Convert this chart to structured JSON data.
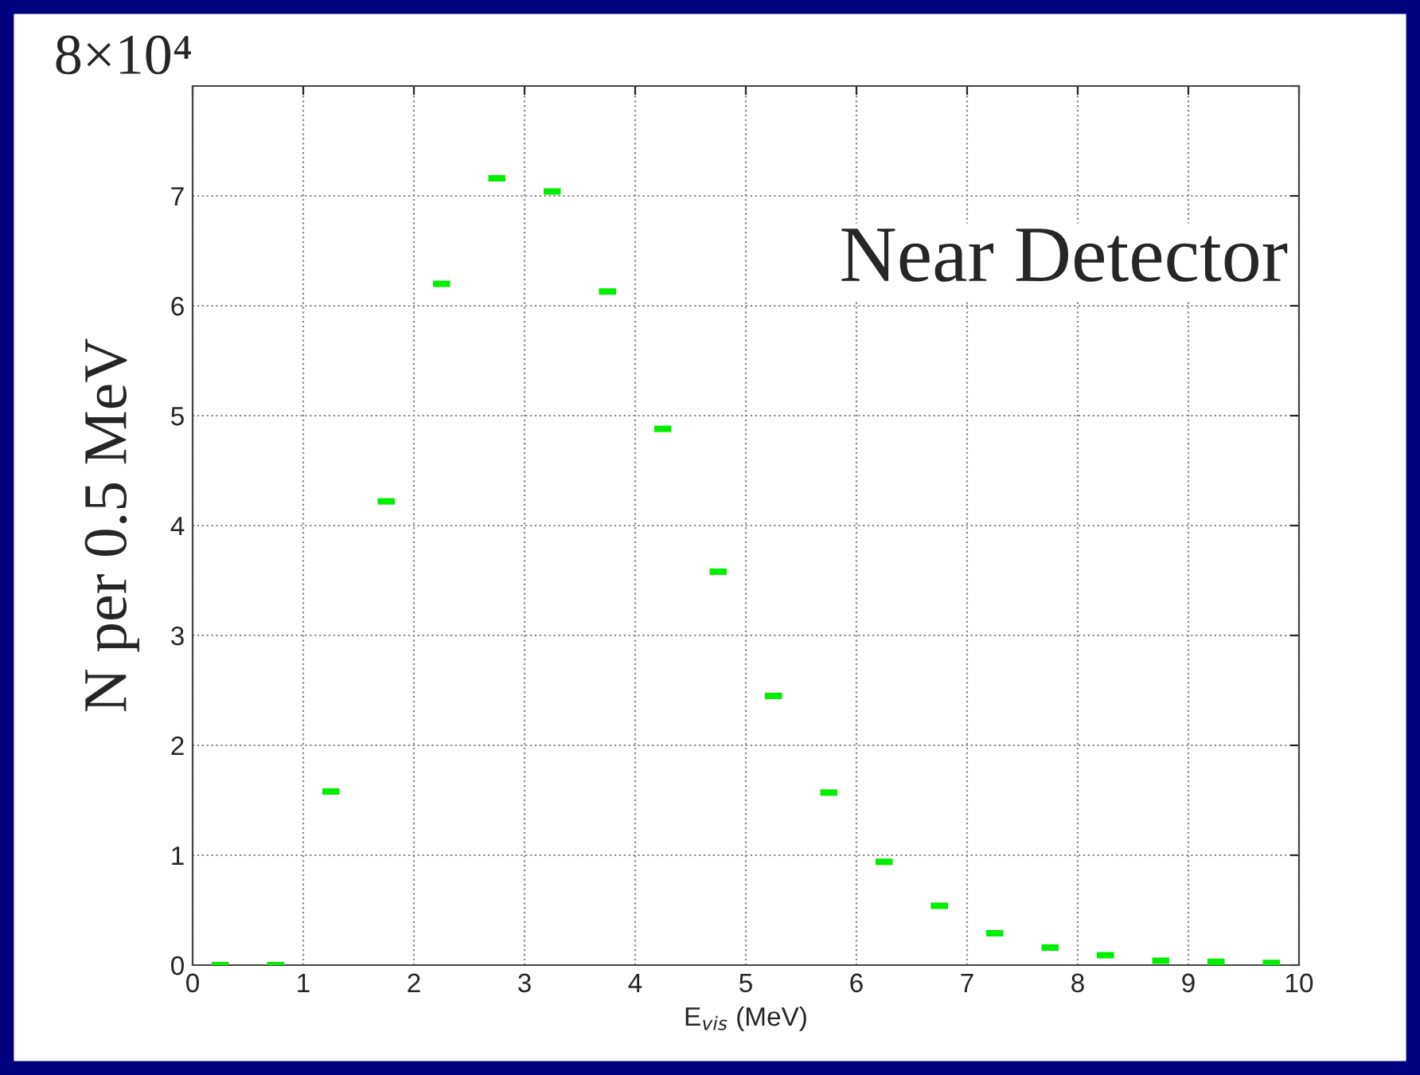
{
  "chart_data": {
    "type": "scatter",
    "ylabel": "N per 0.5 MeV",
    "xlabel": "E$_{vis}$ (MeV)",
    "annotations": [
      "Near Detector",
      "8×10⁴"
    ],
    "x": [
      0.25,
      0.75,
      1.25,
      1.75,
      2.25,
      2.75,
      3.25,
      3.75,
      4.25,
      4.75,
      5.25,
      5.75,
      6.25,
      6.75,
      7.25,
      7.75,
      8.25,
      8.75,
      9.25,
      9.75
    ],
    "series": [
      {
        "color": "#00ee00",
        "values": [
          0,
          0,
          1.58,
          4.22,
          6.2,
          7.16,
          7.04,
          6.13,
          4.88,
          3.58,
          2.45,
          1.57,
          0.94,
          0.54,
          0.29,
          0.16,
          0.09,
          0.04,
          0.03,
          0.02
        ]
      }
    ],
    "xlim": [
      0,
      10
    ],
    "xticks": [
      0,
      1,
      2,
      3,
      4,
      5,
      6,
      7,
      8,
      9,
      10
    ],
    "ylim": [
      0,
      8
    ],
    "yticks": [
      0,
      1,
      2,
      3,
      4,
      5,
      6,
      7,
      {
        "value": 8,
        "label": null
      }
    ],
    "grid": true,
    "marker": "square"
  }
}
